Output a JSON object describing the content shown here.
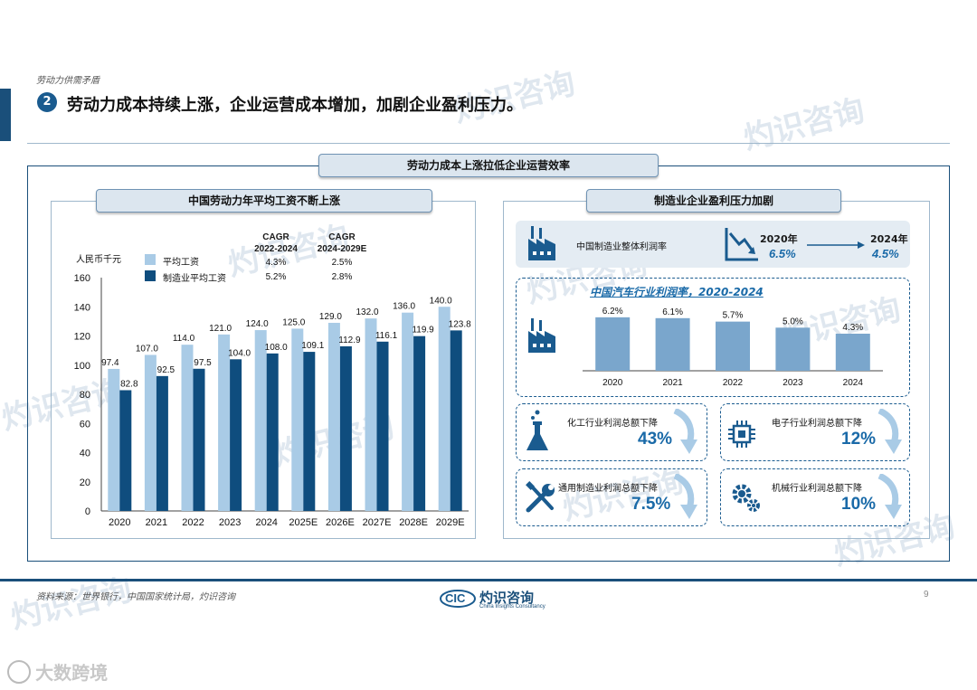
{
  "header": {
    "section_label": "劳动力供需矛盾",
    "badge": "2",
    "title": "劳动力成本持续上涨，企业运营成本增加，加剧企业盈利压力。",
    "banner": "劳动力成本上涨拉低企业运营效率"
  },
  "left_panel": {
    "title": "中国劳动力年平均工资不断上涨",
    "unit": "人民币千元",
    "cagr_headers": [
      "CAGR\n2022-2024",
      "CAGR\n2024-2029E"
    ],
    "cagr_h1_l1": "CAGR",
    "cagr_h1_l2": "2022-2024",
    "cagr_h2_l1": "CAGR",
    "cagr_h2_l2": "2024-2029E",
    "cagr_rows": [
      {
        "name": "平均工资",
        "c1": "4.3%",
        "c2": "2.5%"
      },
      {
        "name": "制造业平均工资",
        "c1": "5.2%",
        "c2": "2.8%"
      }
    ]
  },
  "right_panel": {
    "title": "制造业企业盈利压力加剧",
    "overall_label": "中国制造业整体利润率",
    "from_year": "2020年",
    "from_val": "6.5%",
    "to_year": "2024年",
    "to_val": "4.5%",
    "auto_title": "中国汽车行业利润率，2020-2024",
    "cards": [
      {
        "label": "化工行业利润总额下降",
        "value": "43%"
      },
      {
        "label": "电子行业利润总额下降",
        "value": "12%"
      },
      {
        "label": "通用制造业利润总额下降",
        "value": "7.5%"
      },
      {
        "label": "机械行业利润总额下降",
        "value": "10%"
      }
    ]
  },
  "footer": {
    "source": "资料来源：世界银行，中国国家统计局，灼识咨询",
    "page": "9",
    "logo_cn": "灼识咨询",
    "logo_en": "China Insights Consultancy",
    "logo_mark": "CIC",
    "bottom_brand": "大数跨境"
  },
  "watermark": {
    "cn": "灼识咨询",
    "en": "China Insights Consultancy",
    "mark": "CIC"
  },
  "colors": {
    "light_bar": "#a9cbe6",
    "dark_bar": "#0f4d7e",
    "accent": "#1a6aa8",
    "auto_bar": "#7aa6cc"
  },
  "chart_data": [
    {
      "type": "bar",
      "title": "中国劳动力年平均工资不断上涨",
      "ylabel": "人民币千元",
      "ylim": [
        0,
        160
      ],
      "yticks": [
        0,
        20,
        40,
        60,
        80,
        100,
        120,
        140,
        160
      ],
      "categories": [
        "2020",
        "2021",
        "2022",
        "2023",
        "2024",
        "2025E",
        "2026E",
        "2027E",
        "2028E",
        "2029E"
      ],
      "series": [
        {
          "name": "平均工资",
          "values": [
            97.4,
            107.0,
            114.0,
            121.0,
            124.0,
            125.0,
            129.0,
            132.0,
            136.0,
            140.0
          ],
          "labels": [
            "97.4",
            "107.0",
            "114.0",
            "121.0",
            "124.0",
            "125.0",
            "129.0",
            "132.0",
            "136.0",
            "140.0"
          ]
        },
        {
          "name": "制造业平均工资",
          "values": [
            82.8,
            92.5,
            97.5,
            104.0,
            108.0,
            109.1,
            112.9,
            116.1,
            119.9,
            123.8
          ],
          "labels": [
            "82.8",
            "92.5",
            "97.5",
            "104.0",
            "108.0",
            "109.1",
            "112.9",
            "116.1",
            "119.9",
            "123.8"
          ]
        }
      ],
      "legend": "top-left"
    },
    {
      "type": "bar",
      "title": "中国汽车行业利润率，2020-2024",
      "categories": [
        "2020",
        "2021",
        "2022",
        "2023",
        "2024"
      ],
      "values": [
        6.2,
        6.1,
        5.7,
        5.0,
        4.3
      ],
      "labels": [
        "6.2%",
        "6.1%",
        "5.7%",
        "5.0%",
        "4.3%"
      ]
    }
  ]
}
